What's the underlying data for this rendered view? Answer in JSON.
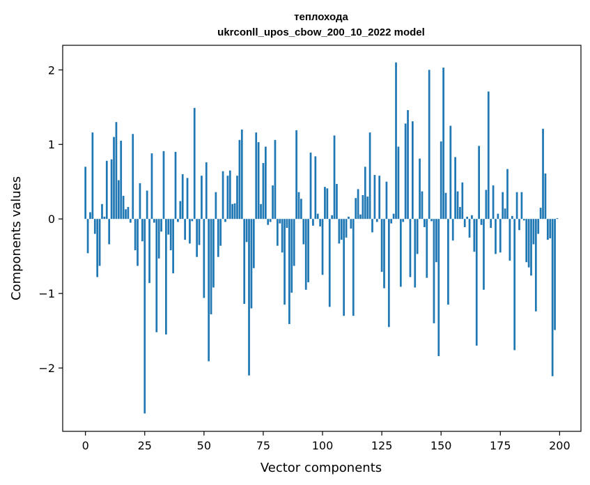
{
  "chart_data": {
    "type": "bar",
    "title_line1": "теплохода",
    "title_line2": "ukrconll_upos_cbow_200_10_2022 model",
    "xlabel": "Vector components",
    "ylabel": "Components values",
    "xlim": [
      -9.6,
      209
    ],
    "ylim": [
      -2.85,
      2.33
    ],
    "xticks": [
      0,
      25,
      50,
      75,
      100,
      125,
      150,
      175,
      200
    ],
    "xtick_labels": [
      "0",
      "25",
      "50",
      "75",
      "100",
      "125",
      "150",
      "175",
      "200"
    ],
    "yticks": [
      -2,
      -1,
      0,
      1,
      2
    ],
    "ytick_labels": [
      "−2",
      "−1",
      "0",
      "1",
      "2"
    ],
    "bar_color": "#1f77b4",
    "x": [
      0,
      1,
      2,
      3,
      4,
      5,
      6,
      7,
      8,
      9,
      10,
      11,
      12,
      13,
      14,
      15,
      16,
      17,
      18,
      19,
      20,
      21,
      22,
      23,
      24,
      25,
      26,
      27,
      28,
      29,
      30,
      31,
      32,
      33,
      34,
      35,
      36,
      37,
      38,
      39,
      40,
      41,
      42,
      43,
      44,
      45,
      46,
      47,
      48,
      49,
      50,
      51,
      52,
      53,
      54,
      55,
      56,
      57,
      58,
      59,
      60,
      61,
      62,
      63,
      64,
      65,
      66,
      67,
      68,
      69,
      70,
      71,
      72,
      73,
      74,
      75,
      76,
      77,
      78,
      79,
      80,
      81,
      82,
      83,
      84,
      85,
      86,
      87,
      88,
      89,
      90,
      91,
      92,
      93,
      94,
      95,
      96,
      97,
      98,
      99,
      100,
      101,
      102,
      103,
      104,
      105,
      106,
      107,
      108,
      109,
      110,
      111,
      112,
      113,
      114,
      115,
      116,
      117,
      118,
      119,
      120,
      121,
      122,
      123,
      124,
      125,
      126,
      127,
      128,
      129,
      130,
      131,
      132,
      133,
      134,
      135,
      136,
      137,
      138,
      139,
      140,
      141,
      142,
      143,
      144,
      145,
      146,
      147,
      148,
      149,
      150,
      151,
      152,
      153,
      154,
      155,
      156,
      157,
      158,
      159,
      160,
      161,
      162,
      163,
      164,
      165,
      166,
      167,
      168,
      169,
      170,
      171,
      172,
      173,
      174,
      175,
      176,
      177,
      178,
      179,
      180,
      181,
      182,
      183,
      184,
      185,
      186,
      187,
      188,
      189,
      190,
      191,
      192,
      193,
      194,
      195,
      196,
      197,
      198,
      199
    ],
    "values": [
      0.7,
      -0.46,
      0.09,
      1.16,
      -0.2,
      -0.78,
      -0.63,
      0.2,
      0.03,
      0.78,
      -0.34,
      0.8,
      1.1,
      1.3,
      0.52,
      1.05,
      0.31,
      0.13,
      0.16,
      -0.05,
      1.14,
      -0.42,
      -0.63,
      0.48,
      -0.3,
      -2.61,
      0.38,
      -0.86,
      0.88,
      -0.05,
      -1.52,
      -0.53,
      -0.17,
      0.91,
      -1.55,
      -0.21,
      -0.42,
      -0.73,
      0.9,
      -0.04,
      0.24,
      0.6,
      -0.28,
      0.55,
      -0.33,
      -0.03,
      1.49,
      -0.51,
      -0.35,
      0.58,
      -1.06,
      0.76,
      -1.91,
      -1.28,
      -0.92,
      0.36,
      -0.51,
      -0.36,
      0.64,
      -0.04,
      0.58,
      0.65,
      0.2,
      0.21,
      0.58,
      1.06,
      1.2,
      -1.14,
      -0.31,
      -2.1,
      -1.2,
      -0.66,
      1.16,
      1.03,
      0.2,
      0.75,
      0.97,
      -0.08,
      -0.04,
      0.45,
      1.06,
      -0.36,
      -0.06,
      -0.45,
      -1.15,
      -0.12,
      -1.41,
      -0.99,
      -0.63,
      1.19,
      0.36,
      0.27,
      -0.34,
      -0.95,
      -0.85,
      0.89,
      -0.09,
      0.84,
      0.07,
      -0.1,
      -0.75,
      0.43,
      0.41,
      -1.18,
      0.05,
      1.12,
      0.47,
      -0.33,
      -0.28,
      -1.3,
      -0.25,
      0.03,
      -0.13,
      -1.3,
      0.28,
      0.4,
      0.06,
      0.32,
      0.7,
      0.3,
      1.16,
      -0.18,
      0.59,
      -0.04,
      0.58,
      -0.71,
      -0.93,
      0.5,
      -1.45,
      -0.06,
      0.07,
      2.1,
      0.97,
      -0.91,
      -0.04,
      1.28,
      1.46,
      -0.78,
      1.31,
      -0.92,
      -0.47,
      0.81,
      0.37,
      -0.11,
      -0.79,
      2.0,
      -0.03,
      -1.4,
      -0.58,
      -1.84,
      1.04,
      2.03,
      0.35,
      -1.15,
      1.25,
      -0.29,
      0.83,
      0.37,
      0.16,
      0.49,
      -0.11,
      0.03,
      -0.25,
      0.05,
      -0.44,
      -1.7,
      0.98,
      -0.08,
      -0.95,
      0.39,
      1.71,
      -0.12,
      0.45,
      -0.47,
      0.07,
      -0.45,
      0.36,
      0.14,
      0.67,
      -0.56,
      0.04,
      -1.76,
      0.36,
      -0.15,
      0.36,
      -0.02,
      -0.58,
      -0.65,
      -0.76,
      -0.34,
      -1.24,
      -0.2,
      0.15,
      1.21,
      0.61,
      -0.28,
      -0.26,
      -2.11,
      -1.49,
      0.01
    ]
  }
}
